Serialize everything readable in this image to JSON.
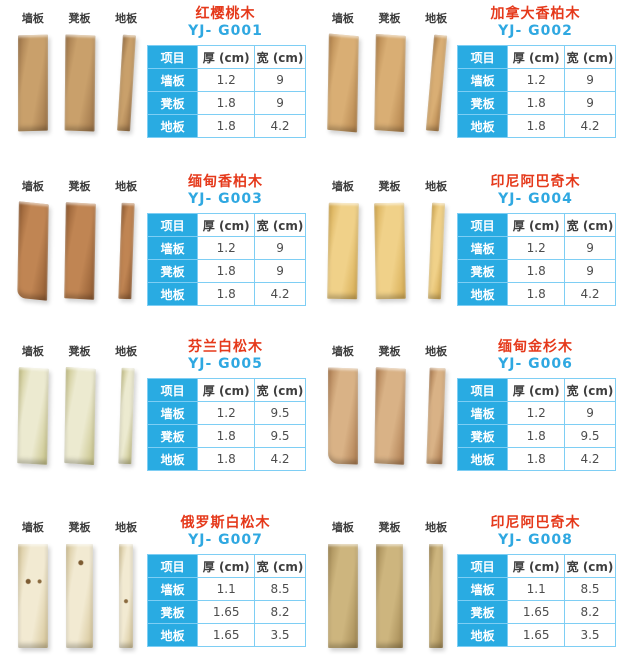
{
  "catalog": {
    "board_labels": [
      "墙板",
      "凳板",
      "地板"
    ],
    "table_headers": [
      "项目",
      "厚 (cm)",
      "宽 (cm)"
    ],
    "colors": {
      "product_name_red": "#e5391b",
      "model_code_blue": "#2fa8e1",
      "table_header_bg": "#29abe2",
      "table_border": "#7ecef4",
      "value_text": "#4d4d4d"
    },
    "products": [
      {
        "name": "红樱桃木",
        "model": "YJ- G001",
        "wood_light": "#c9a06b",
        "wood_dark": "#9c7347",
        "rows": [
          {
            "item": "墙板",
            "thick": "1.2",
            "width": "9"
          },
          {
            "item": "凳板",
            "thick": "1.8",
            "width": "9"
          },
          {
            "item": "地板",
            "thick": "1.8",
            "width": "4.2"
          }
        ]
      },
      {
        "name": "加拿大香柏木",
        "model": "YJ- G002",
        "wood_light": "#d9ae74",
        "wood_dark": "#b08049",
        "rows": [
          {
            "item": "墙板",
            "thick": "1.2",
            "width": "9"
          },
          {
            "item": "凳板",
            "thick": "1.8",
            "width": "9"
          },
          {
            "item": "地板",
            "thick": "1.8",
            "width": "4.2"
          }
        ]
      },
      {
        "name": "缅甸香柏木",
        "model": "YJ- G003",
        "wood_light": "#c08553",
        "wood_dark": "#8f5a31",
        "rows": [
          {
            "item": "墙板",
            "thick": "1.2",
            "width": "9"
          },
          {
            "item": "凳板",
            "thick": "1.8",
            "width": "9"
          },
          {
            "item": "地板",
            "thick": "1.8",
            "width": "4.2"
          }
        ]
      },
      {
        "name": "印尼阿巴奇木",
        "model": "YJ- G004",
        "wood_light": "#f0d189",
        "wood_dark": "#d4a94f",
        "rows": [
          {
            "item": "墙板",
            "thick": "1.2",
            "width": "9"
          },
          {
            "item": "凳板",
            "thick": "1.8",
            "width": "9"
          },
          {
            "item": "地板",
            "thick": "1.8",
            "width": "4.2"
          }
        ]
      },
      {
        "name": "芬兰白松木",
        "model": "YJ- G005",
        "wood_light": "#ecead0",
        "wood_dark": "#c5c084",
        "rows": [
          {
            "item": "墙板",
            "thick": "1.2",
            "width": "9.5"
          },
          {
            "item": "凳板",
            "thick": "1.8",
            "width": "9.5"
          },
          {
            "item": "地板",
            "thick": "1.8",
            "width": "4.2"
          }
        ]
      },
      {
        "name": "缅甸金杉木",
        "model": "YJ- G006",
        "wood_light": "#d9b286",
        "wood_dark": "#ab7a4e",
        "rows": [
          {
            "item": "墙板",
            "thick": "1.2",
            "width": "9"
          },
          {
            "item": "凳板",
            "thick": "1.8",
            "width": "9.5"
          },
          {
            "item": "地板",
            "thick": "1.8",
            "width": "4.2"
          }
        ]
      },
      {
        "name": "俄罗斯白松木",
        "model": "YJ- G007",
        "wood_light": "#f2ead2",
        "wood_dark": "#d3c294",
        "rows": [
          {
            "item": "墙板",
            "thick": "1.1",
            "width": "8.5"
          },
          {
            "item": "凳板",
            "thick": "1.65",
            "width": "8.2"
          },
          {
            "item": "地板",
            "thick": "1.65",
            "width": "3.5"
          }
        ]
      },
      {
        "name": "印尼阿巴奇木",
        "model": "YJ- G008",
        "wood_light": "#cdb57e",
        "wood_dark": "#a18752",
        "rows": [
          {
            "item": "墙板",
            "thick": "1.1",
            "width": "8.5"
          },
          {
            "item": "凳板",
            "thick": "1.65",
            "width": "8.2"
          },
          {
            "item": "地板",
            "thick": "1.65",
            "width": "3.5"
          }
        ]
      }
    ]
  }
}
